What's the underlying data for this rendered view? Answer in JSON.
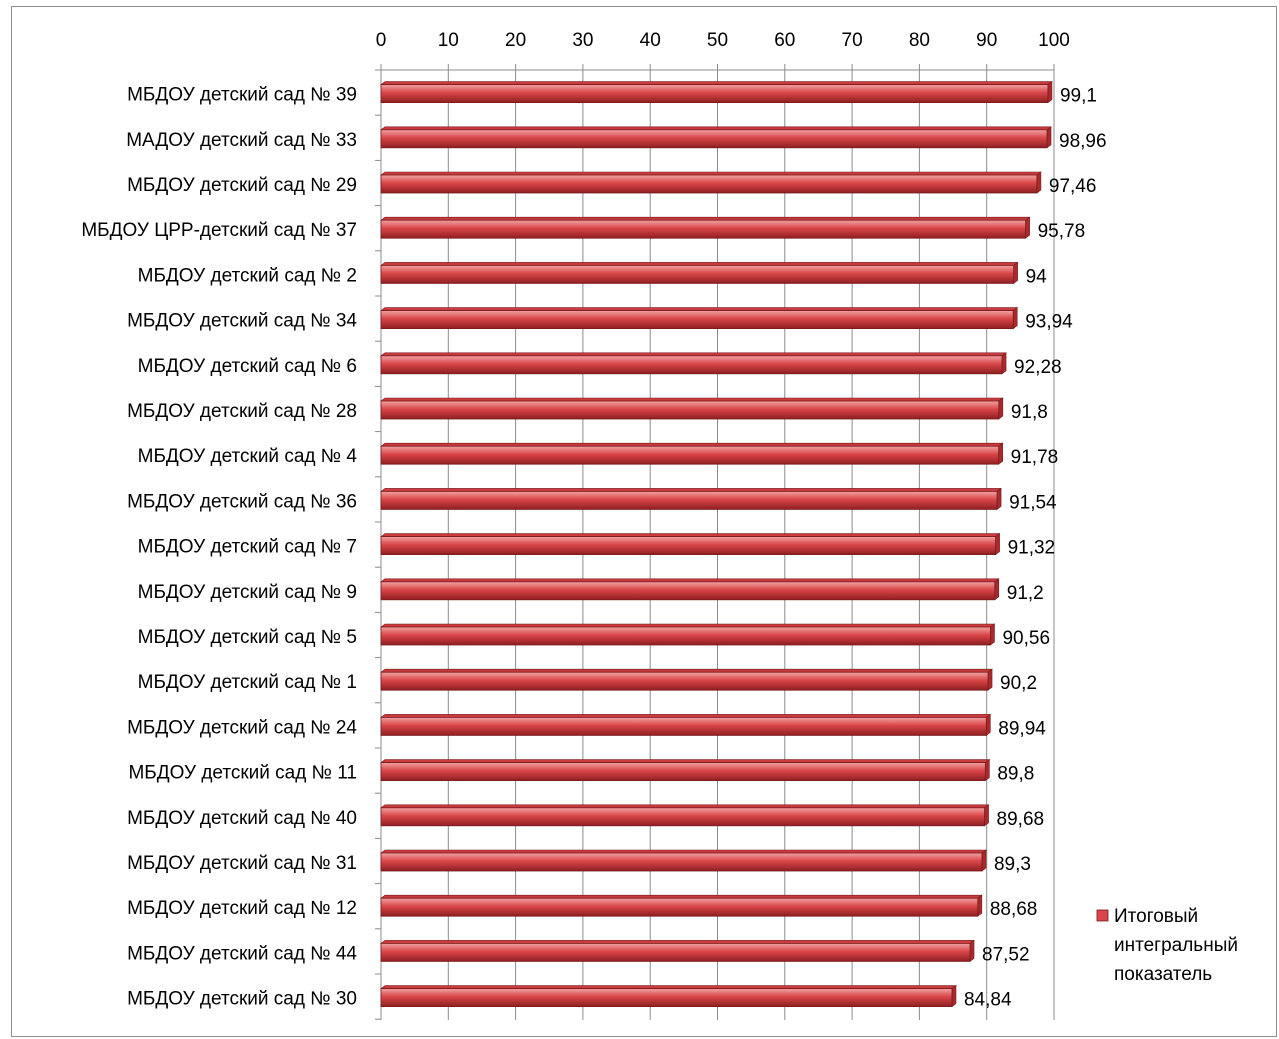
{
  "chart_data": {
    "type": "bar",
    "orientation": "horizontal",
    "title": "",
    "xlabel": "",
    "ylabel": "",
    "xlim": [
      0,
      100
    ],
    "ticks": [
      "0",
      "10",
      "20",
      "30",
      "40",
      "50",
      "60",
      "70",
      "80",
      "90",
      "100"
    ],
    "tick_values": [
      0,
      10,
      20,
      30,
      40,
      50,
      60,
      70,
      80,
      90,
      100
    ],
    "axis_position": "top",
    "grid": true,
    "legend_position": "right",
    "categories": [
      "МБДОУ детский сад № 39",
      "МАДОУ детский сад № 33",
      "МБДОУ детский сад № 29",
      "МБДОУ ЦРР-детский сад № 37",
      "МБДОУ детский сад № 2",
      "МБДОУ детский сад № 34",
      "МБДОУ детский сад № 6",
      "МБДОУ детский сад № 28",
      "МБДОУ детский сад № 4",
      "МБДОУ детский сад № 36",
      "МБДОУ детский сад № 7",
      "МБДОУ детский сад № 9",
      "МБДОУ детский сад № 5",
      "МБДОУ детский сад № 1",
      "МБДОУ детский сад № 24",
      "МБДОУ детский сад № 11",
      "МБДОУ детский сад № 40",
      "МБДОУ детский сад № 31",
      "МБДОУ детский сад № 12",
      "МБДОУ детский сад № 44",
      "МБДОУ детский сад № 30"
    ],
    "series": [
      {
        "name": "Итоговый интегральный показатель",
        "legend_lines": [
          "Итоговый",
          "интегральный",
          "показатель"
        ],
        "color": "#d9474a",
        "values": [
          99.1,
          98.96,
          97.46,
          95.78,
          94,
          93.94,
          92.28,
          91.8,
          91.78,
          91.54,
          91.32,
          91.2,
          90.56,
          90.2,
          89.94,
          89.8,
          89.68,
          89.3,
          88.68,
          87.52,
          84.84
        ],
        "labels": [
          "99,1",
          "98,96",
          "97,46",
          "95,78",
          "94",
          "93,94",
          "92,28",
          "91,8",
          "91,78",
          "91,54",
          "91,32",
          "91,2",
          "90,56",
          "90,2",
          "89,94",
          "89,8",
          "89,68",
          "89,3",
          "88,68",
          "87,52",
          "84,84"
        ]
      }
    ]
  }
}
